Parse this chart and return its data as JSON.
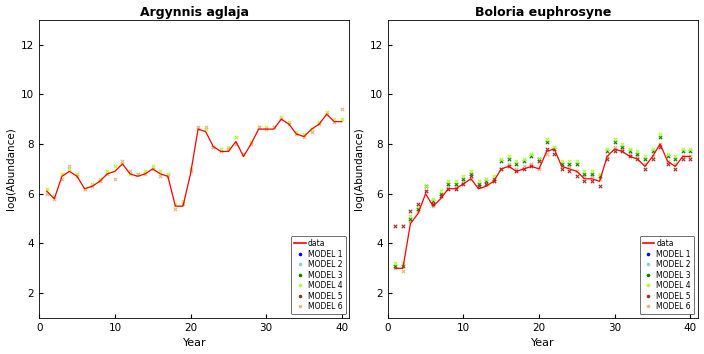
{
  "title1": "Argynnis aglaja",
  "title2": "Boloria euphrosyne",
  "ylabel": "log(Abundance)",
  "xlabel": "Year",
  "xlim": [
    0,
    41
  ],
  "ylim": [
    1,
    13
  ],
  "yticks": [
    2,
    4,
    6,
    8,
    10,
    12
  ],
  "xticks": [
    0,
    10,
    20,
    30,
    40
  ],
  "bg_color": "#ffffff",
  "data1_x": [
    1,
    2,
    3,
    4,
    5,
    6,
    7,
    8,
    9,
    10,
    11,
    12,
    13,
    14,
    15,
    16,
    17,
    18,
    19,
    20,
    21,
    22,
    23,
    24,
    25,
    26,
    27,
    28,
    29,
    30,
    31,
    32,
    33,
    34,
    35,
    36,
    37,
    38,
    39,
    40
  ],
  "data1_y": [
    6.1,
    5.8,
    6.7,
    6.9,
    6.7,
    6.2,
    6.3,
    6.5,
    6.8,
    6.9,
    7.2,
    6.8,
    6.7,
    6.8,
    7.0,
    6.8,
    6.7,
    5.5,
    5.5,
    6.8,
    8.6,
    8.5,
    7.9,
    7.7,
    7.7,
    8.1,
    7.5,
    8.0,
    8.6,
    8.6,
    8.6,
    9.0,
    8.8,
    8.4,
    8.3,
    8.6,
    8.8,
    9.2,
    8.9,
    8.9
  ],
  "data2_x": [
    1,
    2,
    3,
    4,
    5,
    6,
    7,
    8,
    9,
    10,
    11,
    12,
    13,
    14,
    15,
    16,
    17,
    18,
    19,
    20,
    21,
    22,
    23,
    24,
    25,
    26,
    27,
    28,
    29,
    30,
    31,
    32,
    33,
    34,
    35,
    36,
    37,
    38,
    39,
    40
  ],
  "data2_y": [
    3.0,
    3.0,
    4.8,
    5.2,
    6.0,
    5.5,
    5.8,
    6.2,
    6.2,
    6.4,
    6.6,
    6.2,
    6.3,
    6.5,
    7.0,
    7.1,
    6.9,
    7.0,
    7.1,
    7.0,
    7.7,
    7.8,
    7.1,
    7.0,
    6.9,
    6.6,
    6.6,
    6.5,
    7.5,
    7.8,
    7.7,
    7.5,
    7.4,
    7.1,
    7.5,
    8.0,
    7.3,
    7.1,
    7.5,
    7.5
  ],
  "model_colors": [
    "blue",
    "skyblue",
    "green",
    "greenyellow",
    "brown",
    "burlywood"
  ],
  "model_names": [
    "MODEL 1",
    "MODEL 2",
    "MODEL 3",
    "MODEL 4",
    "MODEL 5",
    "MODEL 6"
  ],
  "m6_y1": [
    6.0,
    5.8,
    6.6,
    7.1,
    6.7,
    6.2,
    6.3,
    6.5,
    6.8,
    6.6,
    7.3,
    6.9,
    6.8,
    6.8,
    7.0,
    6.7,
    6.7,
    5.4,
    5.6,
    6.9,
    8.7,
    8.7,
    7.9,
    7.7,
    7.8,
    8.0,
    7.6,
    8.0,
    8.7,
    8.6,
    8.7,
    9.0,
    8.8,
    8.4,
    8.3,
    8.5,
    8.8,
    9.2,
    8.9,
    9.4
  ],
  "m4_y1": [
    6.2,
    5.9,
    6.8,
    7.0,
    6.8,
    6.2,
    6.4,
    6.6,
    6.9,
    7.1,
    7.2,
    6.8,
    6.8,
    6.9,
    7.1,
    6.9,
    6.8,
    5.6,
    5.7,
    7.0,
    8.6,
    8.6,
    7.9,
    7.8,
    7.9,
    8.3,
    7.6,
    8.1,
    8.7,
    8.7,
    8.7,
    9.1,
    8.9,
    8.5,
    8.4,
    8.6,
    8.9,
    9.3,
    9.0,
    9.0
  ],
  "m6_y2": [
    3.0,
    2.9,
    4.9,
    5.3,
    6.1,
    5.5,
    5.9,
    6.3,
    6.3,
    6.5,
    6.6,
    6.3,
    6.4,
    6.5,
    7.0,
    7.2,
    7.0,
    7.1,
    7.2,
    7.0,
    7.6,
    7.8,
    7.1,
    7.1,
    6.9,
    6.7,
    6.7,
    6.6,
    7.5,
    7.9,
    7.8,
    7.6,
    7.5,
    7.2,
    7.5,
    8.0,
    7.3,
    7.2,
    7.5,
    7.5
  ],
  "m3_y2": [
    3.1,
    3.1,
    5.0,
    5.4,
    6.3,
    5.7,
    6.0,
    6.4,
    6.4,
    6.6,
    6.8,
    6.4,
    6.5,
    6.6,
    7.3,
    7.4,
    7.2,
    7.3,
    7.5,
    7.4,
    8.1,
    7.8,
    7.2,
    7.2,
    7.2,
    6.8,
    6.8,
    6.7,
    7.7,
    8.1,
    7.9,
    7.7,
    7.6,
    7.4,
    7.7,
    8.3,
    7.5,
    7.4,
    7.7,
    7.7
  ],
  "m4_y2": [
    3.2,
    3.2,
    5.1,
    5.5,
    6.3,
    5.8,
    6.1,
    6.5,
    6.5,
    6.7,
    6.9,
    6.5,
    6.6,
    6.7,
    7.4,
    7.5,
    7.3,
    7.4,
    7.6,
    7.4,
    8.2,
    7.9,
    7.3,
    7.3,
    7.3,
    6.9,
    6.9,
    6.8,
    7.8,
    8.2,
    8.0,
    7.8,
    7.7,
    7.5,
    7.8,
    8.4,
    7.6,
    7.5,
    7.8,
    7.8
  ],
  "m5_y2": [
    4.7,
    4.7,
    5.3,
    5.6,
    6.1,
    5.6,
    5.9,
    6.2,
    6.2,
    6.4,
    6.7,
    6.3,
    6.4,
    6.5,
    7.0,
    7.1,
    6.9,
    7.0,
    7.1,
    7.3,
    7.8,
    7.6,
    7.0,
    6.9,
    6.7,
    6.5,
    6.5,
    6.3,
    7.4,
    7.7,
    7.7,
    7.5,
    7.4,
    7.0,
    7.4,
    7.9,
    7.2,
    7.0,
    7.4,
    7.4
  ]
}
